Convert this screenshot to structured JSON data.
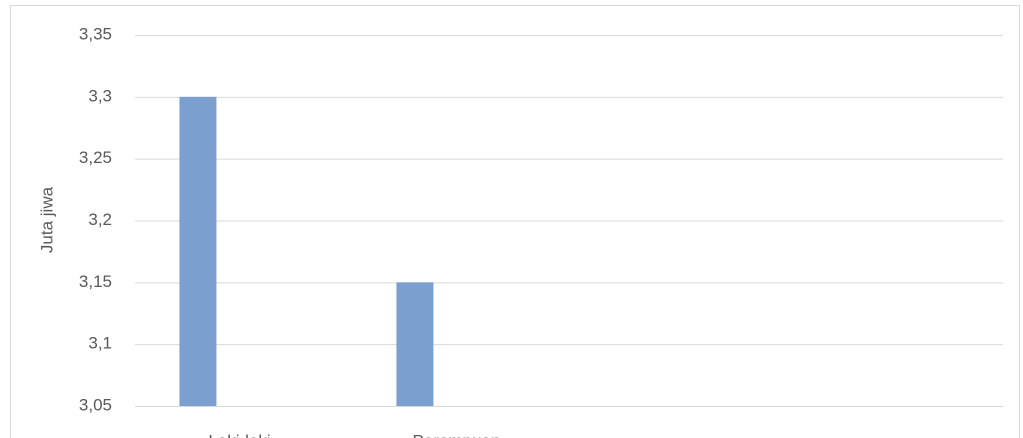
{
  "chart_data": {
    "type": "bar",
    "y_label": "Juta jiwa",
    "categories": [
      "Laki-laki",
      "Perempuan"
    ],
    "values": [
      3.3,
      3.15
    ],
    "color": "#7ba0d0",
    "ylim": [
      3.05,
      3.35
    ],
    "yticks": [
      {
        "value": 3.05,
        "label": "3,05"
      },
      {
        "value": 3.1,
        "label": "3,1"
      },
      {
        "value": 3.15,
        "label": "3,15"
      },
      {
        "value": 3.2,
        "label": "3,2"
      },
      {
        "value": 3.25,
        "label": "3,25"
      },
      {
        "value": 3.3,
        "label": "3,3"
      },
      {
        "value": 3.35,
        "label": "3,35"
      }
    ],
    "grid": true
  }
}
